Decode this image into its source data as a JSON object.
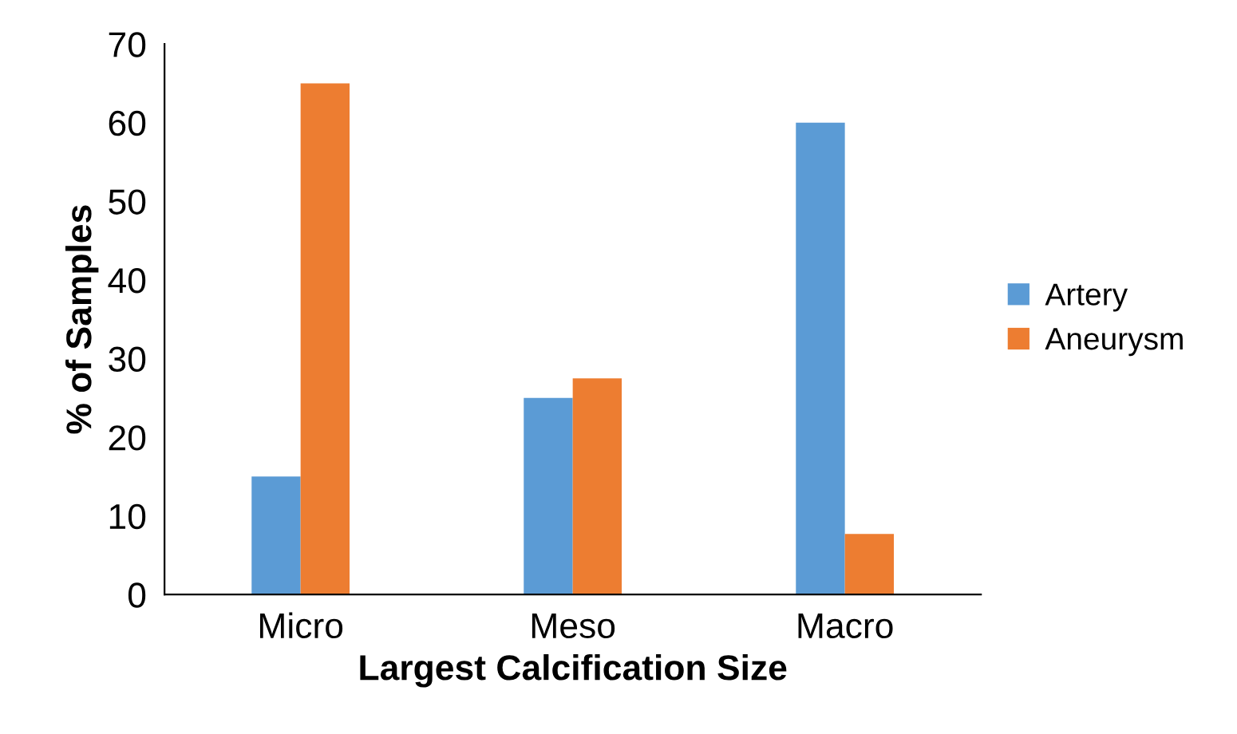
{
  "chart_data": {
    "type": "bar",
    "xlabel": "Largest Calcification Size",
    "ylabel": "% of Samples",
    "categories": [
      "Micro",
      "Meso",
      "Macro"
    ],
    "series": [
      {
        "name": "Artery",
        "color": "#5b9bd5",
        "values": [
          15,
          25,
          60
        ]
      },
      {
        "name": "Aneurysm",
        "color": "#ed7d31",
        "values": [
          65,
          27.5,
          7.7
        ]
      }
    ],
    "ylim": [
      0,
      70
    ],
    "yticks": [
      0,
      10,
      20,
      30,
      40,
      50,
      60,
      70
    ],
    "grid": false,
    "legend": "right"
  }
}
